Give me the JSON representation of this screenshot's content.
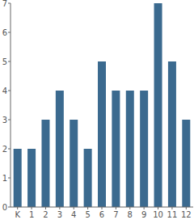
{
  "chart_data": {
    "type": "bar",
    "categories": [
      "K",
      "1",
      "2",
      "3",
      "4",
      "5",
      "6",
      "7",
      "8",
      "9",
      "10",
      "11",
      "12"
    ],
    "values": [
      2,
      2,
      3,
      4,
      3,
      2,
      5,
      4,
      4,
      4,
      7,
      5,
      3
    ],
    "color": "#3b6a8f",
    "ylim": [
      0,
      7
    ],
    "yticks": [
      0,
      1,
      2,
      3,
      4,
      5,
      6,
      7
    ],
    "grid": false
  }
}
